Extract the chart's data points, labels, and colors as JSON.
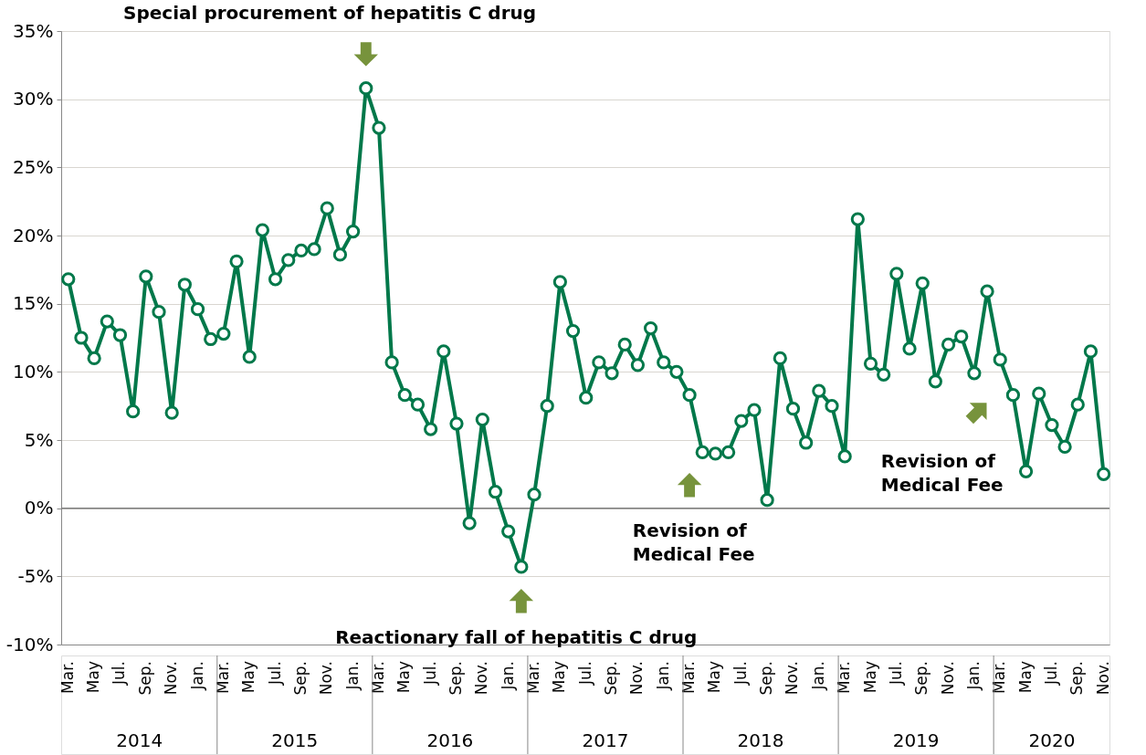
{
  "chart_data": {
    "type": "line",
    "categories": [
      "Mar.",
      null,
      "May",
      null,
      "Jul.",
      null,
      "Sep.",
      null,
      "Nov.",
      null,
      "Jan.",
      null,
      "Mar.",
      null,
      "May",
      null,
      "Jul.",
      null,
      "Sep.",
      null,
      "Nov.",
      null,
      "Jan.",
      null,
      "Mar.",
      null,
      "May",
      null,
      "Jul.",
      null,
      "Sep.",
      null,
      "Nov.",
      null,
      "Jan.",
      null,
      "Mar.",
      null,
      "May",
      null,
      "Jul.",
      null,
      "Sep.",
      null,
      "Nov.",
      null,
      "Jan.",
      null,
      "Mar.",
      null,
      "May",
      null,
      "Jul.",
      null,
      "Sep.",
      null,
      "Nov.",
      null,
      "Jan.",
      null,
      "Mar.",
      null,
      "May",
      null,
      "Jul.",
      null,
      "Sep.",
      null,
      "Nov.",
      null,
      "Jan.",
      null,
      "Mar.",
      null,
      "May",
      null,
      "Jul.",
      null,
      "Sep.",
      null,
      "Nov."
    ],
    "series": [
      {
        "color": "#00784a",
        "values": [
          16.8,
          12.5,
          11.0,
          13.7,
          12.7,
          7.1,
          17.0,
          14.4,
          7.0,
          16.4,
          14.6,
          12.4,
          12.8,
          18.1,
          11.1,
          20.4,
          16.8,
          18.2,
          18.9,
          19.0,
          22.0,
          18.6,
          20.3,
          30.8,
          27.9,
          10.7,
          8.3,
          7.6,
          5.8,
          11.5,
          6.2,
          -1.1,
          6.5,
          1.2,
          -1.7,
          -4.3,
          1.0,
          7.5,
          16.6,
          13.0,
          8.1,
          10.7,
          9.9,
          12.0,
          10.5,
          13.2,
          10.7,
          10.0,
          8.3,
          4.1,
          4.0,
          4.1,
          6.4,
          7.2,
          0.6,
          11.0,
          7.3,
          4.8,
          8.6,
          7.5,
          3.8,
          21.2,
          10.6,
          9.8,
          17.2,
          11.7,
          16.5,
          9.3,
          12.0,
          12.6,
          9.9,
          15.9,
          10.9,
          8.3,
          2.7,
          8.4,
          6.1,
          4.5,
          7.6,
          11.5,
          2.5
        ]
      }
    ],
    "ylim": [
      -10,
      35
    ],
    "yticks": [
      {
        "value": -10,
        "label": "-10%"
      },
      {
        "value": -5,
        "label": "-5%"
      },
      {
        "value": 0,
        "label": "0%"
      },
      {
        "value": 5,
        "label": "5%"
      },
      {
        "value": 10,
        "label": "10%"
      },
      {
        "value": 15,
        "label": "15%"
      },
      {
        "value": 20,
        "label": "20%"
      },
      {
        "value": 25,
        "label": "25%"
      },
      {
        "value": 30,
        "label": "30%"
      },
      {
        "value": 35,
        "label": "35%"
      }
    ],
    "grid": "y",
    "marker": "circle",
    "line_style": "solid",
    "annotations": [
      "Special procurement of hepatitis C drug",
      "Reactionary fall of hepatitis C drug",
      "Revision of\nMedical Fee",
      "Revision of\nMedical Fee",
      "2014",
      "2015",
      "2016",
      "2017",
      "2018",
      "2019",
      "2020"
    ]
  }
}
